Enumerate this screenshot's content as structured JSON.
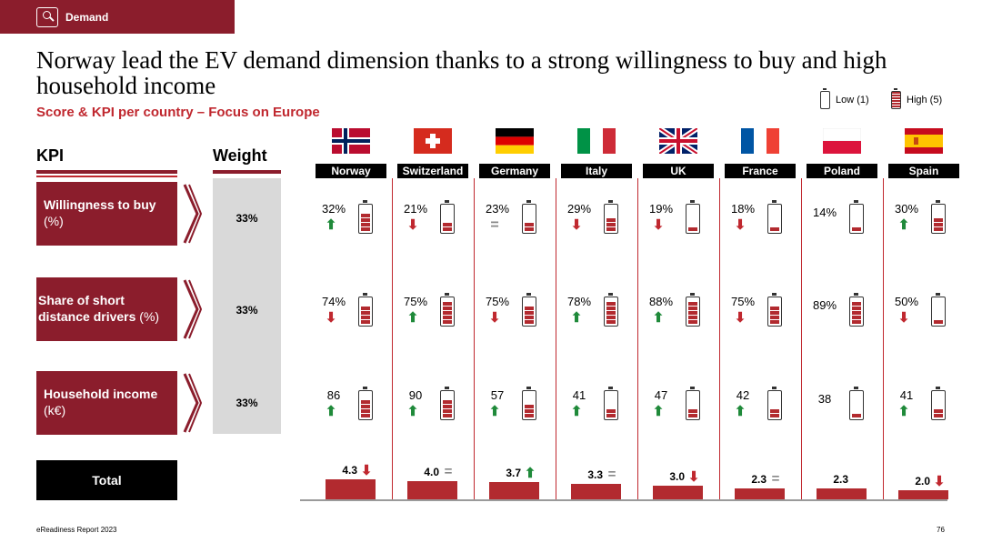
{
  "header": {
    "section": "Demand"
  },
  "title": "Norway lead the EV demand dimension thanks to a strong willingness to buy and high household income",
  "subtitle": "Score & KPI per country – Focus on Europe",
  "legend": {
    "low": "Low (1)",
    "high": "High (5)"
  },
  "table_headers": {
    "kpi": "KPI",
    "weight": "Weight"
  },
  "kpis": [
    {
      "label": "Willingness to buy",
      "unit": "(%)",
      "weight": "33%"
    },
    {
      "label": "Share of short distance drivers",
      "unit": "(%)",
      "weight": "33%"
    },
    {
      "label": "Household income",
      "unit": "(k€)",
      "weight": "33%"
    }
  ],
  "total_label": "Total",
  "chart_data": {
    "type": "table",
    "countries": [
      "Norway",
      "Switzerland",
      "Germany",
      "Italy",
      "UK",
      "France",
      "Poland",
      "Spain"
    ],
    "rows": [
      {
        "kpi": "Willingness to buy (%)",
        "values": [
          "32%",
          "21%",
          "23%",
          "29%",
          "19%",
          "18%",
          "14%",
          "30%"
        ],
        "trend": [
          "up",
          "down",
          "eq",
          "down",
          "down",
          "down",
          "",
          "up"
        ],
        "score": [
          4,
          2,
          2,
          3,
          1,
          1,
          1,
          3
        ]
      },
      {
        "kpi": "Share of short distance drivers (%)",
        "values": [
          "74%",
          "75%",
          "75%",
          "78%",
          "88%",
          "75%",
          "89%",
          "50%"
        ],
        "trend": [
          "down",
          "up",
          "down",
          "up",
          "up",
          "down",
          "",
          "down"
        ],
        "score": [
          4,
          5,
          4,
          5,
          5,
          4,
          5,
          1
        ]
      },
      {
        "kpi": "Household income (k€)",
        "values": [
          "86",
          "90",
          "57",
          "41",
          "47",
          "42",
          "38",
          "41"
        ],
        "trend": [
          "up",
          "up",
          "up",
          "up",
          "up",
          "up",
          "",
          "up"
        ],
        "score": [
          4,
          4,
          3,
          2,
          2,
          2,
          1,
          2
        ]
      }
    ],
    "total": {
      "values": [
        4.3,
        4.0,
        3.7,
        3.3,
        3.0,
        2.3,
        2.3,
        2.0
      ],
      "labels": [
        "4.3",
        "4.0",
        "3.7",
        "3.3",
        "3.0",
        "2.3",
        "2.3",
        "2.0"
      ],
      "trend": [
        "down",
        "eq",
        "up",
        "eq",
        "down",
        "eq",
        "",
        "down"
      ]
    },
    "colors": {
      "accent": "#8b1d2c",
      "bar": "#b22a2f",
      "up": "#1f8a3a",
      "down": "#c0282f",
      "eq": "#888888"
    }
  },
  "footer": {
    "report": "eReadiness Report 2023",
    "page": "76"
  }
}
